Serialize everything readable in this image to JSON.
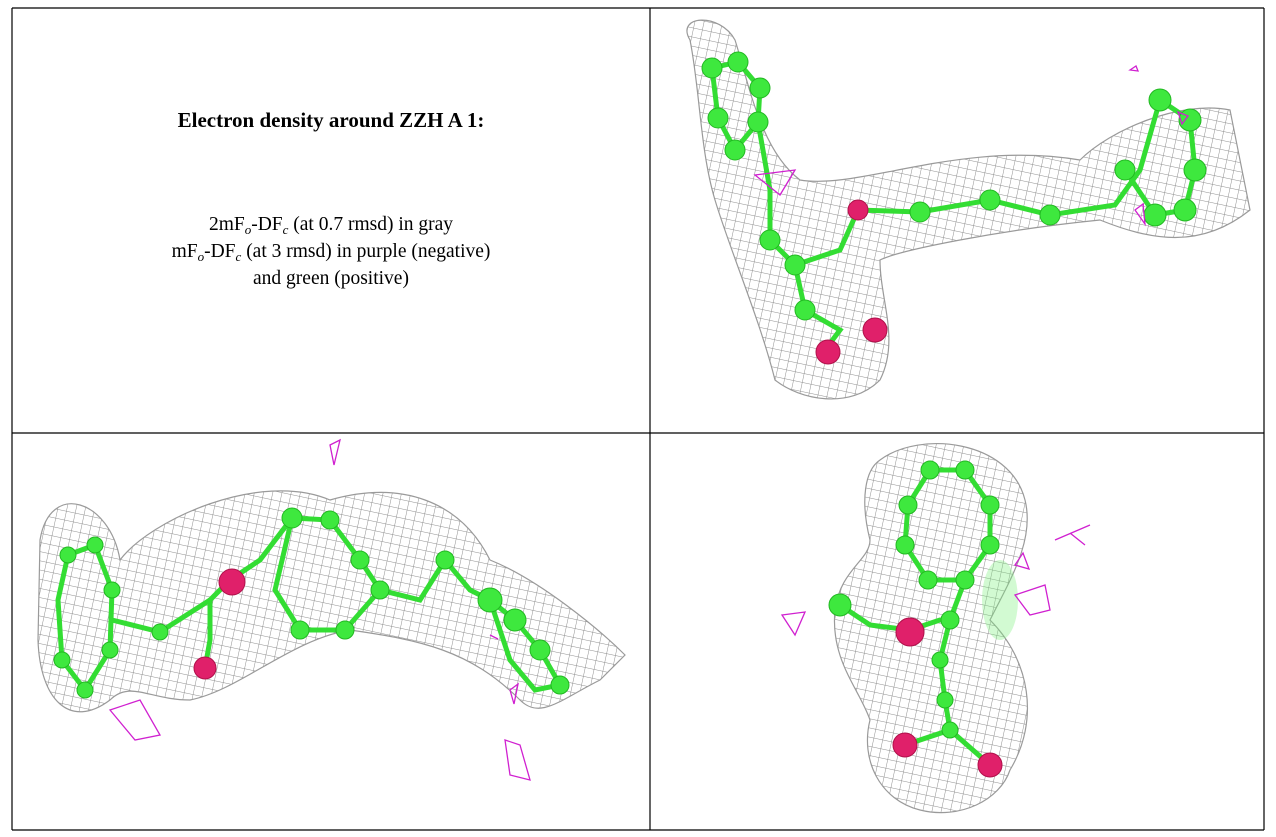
{
  "caption": {
    "title": "Electron density around ZZH A 1:",
    "lines": [
      [
        "2mF",
        "o",
        "-DF",
        "c",
        " (at 0.7 rmsd) in gray"
      ],
      [
        "mF",
        "o",
        "-DF",
        "c",
        " (at 3 rmsd) in purple (negative)"
      ],
      [
        "and green (positive)"
      ]
    ]
  }
}
